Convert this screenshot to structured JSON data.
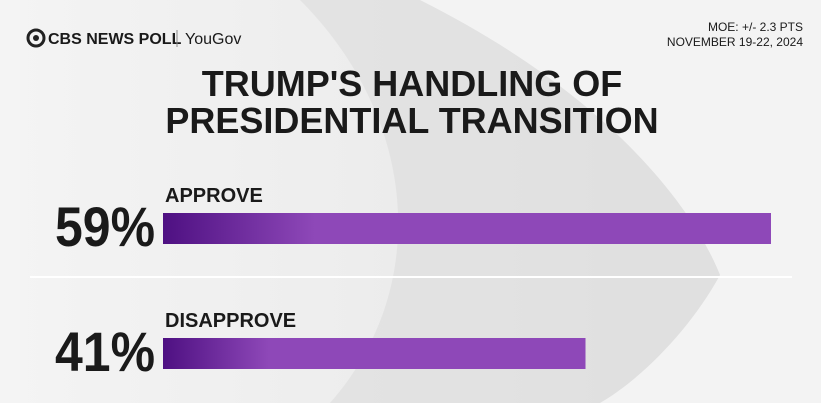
{
  "chart_data": {
    "type": "bar",
    "brand": "CBS NEWS POLL",
    "partner": "YouGov",
    "notes": [
      "MOE: +/- 2.3 PTS",
      "NOVEMBER 19-22, 2024"
    ],
    "title": [
      "TRUMP'S HANDLING OF",
      "PRESIDENTIAL TRANSITION"
    ],
    "categories": [
      "APPROVE",
      "DISAPPROVE"
    ],
    "values": [
      59,
      41
    ],
    "value_labels": [
      "59%",
      "41%"
    ],
    "color": "#8e48b8"
  }
}
